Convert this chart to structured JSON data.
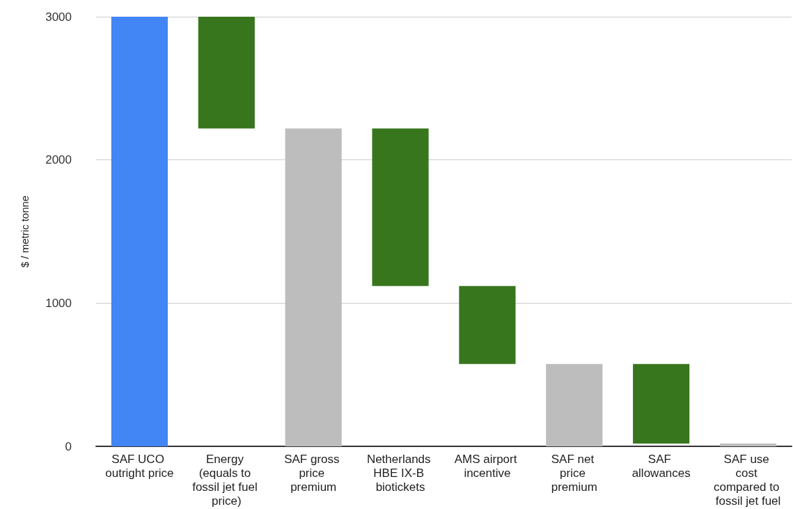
{
  "chart_data": {
    "type": "bar",
    "ylabel": "$ / metric tonne",
    "categories": [
      "SAF UCO outright price",
      "Energy (equals to fossil jet fuel price)",
      "SAF gross price premium",
      "Netherlands HBE IX-B biotickets",
      "AMS airport incentive",
      "SAF net price premium",
      "SAF allowances",
      "SAF use cost compared to fossil jet fuel"
    ],
    "values": [
      3000,
      -780,
      2220,
      -1100,
      -545,
      575,
      -555,
      20
    ],
    "base": [
      0,
      3000,
      0,
      2220,
      1120,
      0,
      575,
      0
    ],
    "colors": [
      "#4285f4",
      "#38761d",
      "#bdbdbd",
      "#38761d",
      "#38761d",
      "#bdbdbd",
      "#38761d",
      "#bdbdbd"
    ],
    "ylim": [
      0,
      3000
    ],
    "yticks": [
      0,
      1000,
      2000,
      3000
    ],
    "grid": "y"
  }
}
